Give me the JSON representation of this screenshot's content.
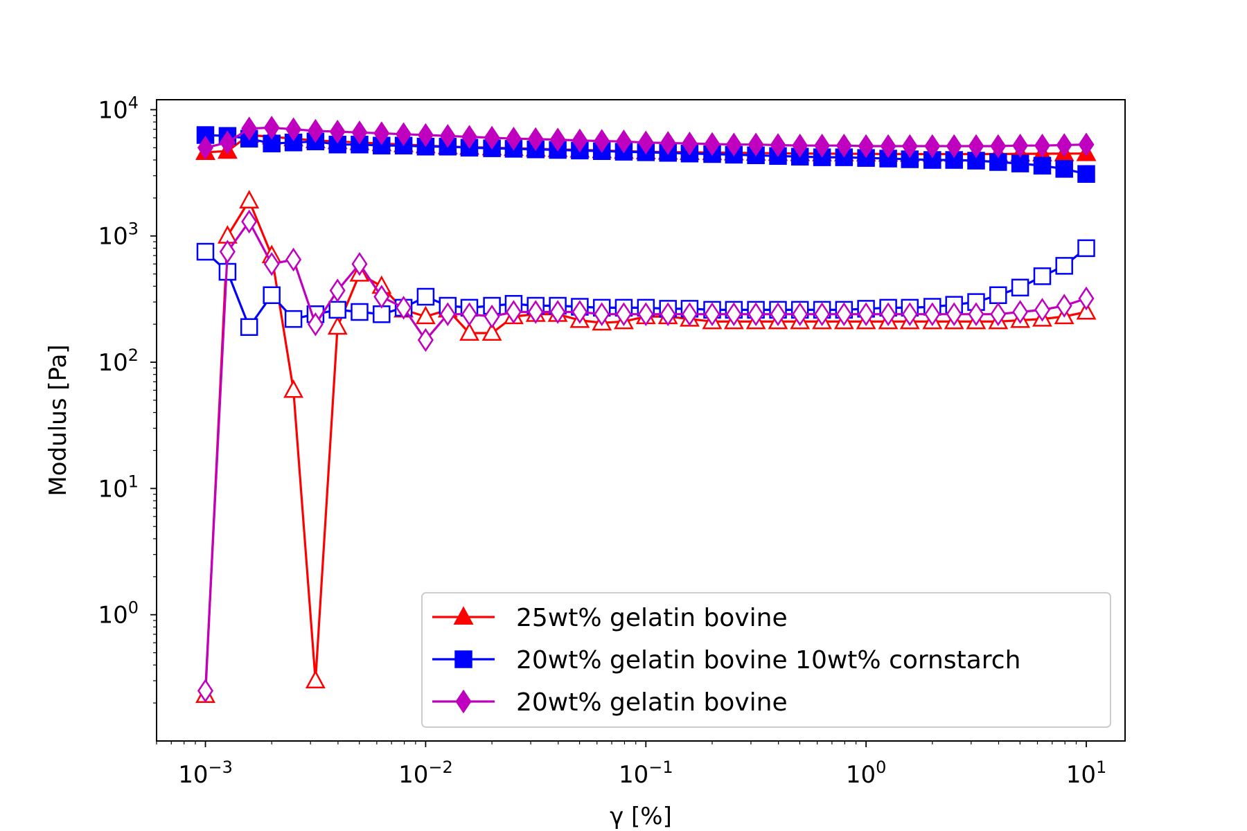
{
  "chart_data": {
    "type": "line",
    "xscale": "log",
    "yscale": "log",
    "xlim": [
      0.0006,
      15
    ],
    "ylim": [
      0.1,
      12000
    ],
    "xlabel": "γ [%]",
    "ylabel": "Modulus [Pa]",
    "grid": false,
    "legend_placement": "lower-right",
    "x_ticks": [
      {
        "value": 0.001,
        "base": "10",
        "exp": "−3"
      },
      {
        "value": 0.01,
        "base": "10",
        "exp": "−2"
      },
      {
        "value": 0.1,
        "base": "10",
        "exp": "−1"
      },
      {
        "value": 1,
        "base": "10",
        "exp": "0"
      },
      {
        "value": 10,
        "base": "10",
        "exp": "1"
      }
    ],
    "y_ticks": [
      {
        "value": 1,
        "base": "10",
        "exp": "0"
      },
      {
        "value": 10,
        "base": "10",
        "exp": "1"
      },
      {
        "value": 100,
        "base": "10",
        "exp": "2"
      },
      {
        "value": 1000,
        "base": "10",
        "exp": "3"
      },
      {
        "value": 10000,
        "base": "10",
        "exp": "4"
      }
    ],
    "x": [
      0.001,
      0.00126,
      0.00158,
      0.002,
      0.00251,
      0.00316,
      0.00398,
      0.00501,
      0.00631,
      0.00794,
      0.01,
      0.0126,
      0.0158,
      0.02,
      0.0251,
      0.0316,
      0.0398,
      0.0501,
      0.0631,
      0.0794,
      0.1,
      0.126,
      0.158,
      0.2,
      0.251,
      0.316,
      0.398,
      0.501,
      0.631,
      0.794,
      1,
      1.26,
      1.58,
      2,
      2.51,
      3.16,
      3.98,
      5.01,
      6.31,
      7.94,
      10
    ],
    "series": [
      {
        "name": "25wt% gelatin bovine",
        "color": "#ff0000",
        "marker": "triangle",
        "storage": [
          4600,
          4700,
          6300,
          6100,
          5900,
          5700,
          5600,
          5500,
          5400,
          5300,
          5200,
          5100,
          5050,
          5000,
          4950,
          4900,
          4850,
          4800,
          4750,
          4700,
          4650,
          4620,
          4600,
          4580,
          4560,
          4540,
          4520,
          4500,
          4490,
          4480,
          4470,
          4460,
          4450,
          4450,
          4450,
          4450,
          4460,
          4470,
          4480,
          4490,
          4500
        ],
        "loss": [
          0.23,
          1000,
          1900,
          700,
          60,
          0.3,
          190,
          500,
          400,
          260,
          230,
          260,
          170,
          170,
          230,
          240,
          240,
          215,
          205,
          210,
          230,
          230,
          220,
          210,
          210,
          210,
          210,
          210,
          210,
          210,
          210,
          210,
          210,
          210,
          210,
          210,
          210,
          215,
          220,
          230,
          250
        ]
      },
      {
        "name": "20wt% gelatin bovine 10wt% cornstarch",
        "color": "#0000ff",
        "marker": "square",
        "storage": [
          6300,
          6200,
          5900,
          5400,
          5500,
          5600,
          5300,
          5300,
          5200,
          5200,
          5100,
          5100,
          5000,
          4950,
          4900,
          4850,
          4800,
          4750,
          4700,
          4650,
          4600,
          4550,
          4500,
          4450,
          4400,
          4350,
          4300,
          4250,
          4200,
          4200,
          4150,
          4100,
          4050,
          4000,
          4000,
          3950,
          3850,
          3750,
          3600,
          3400,
          3100
        ],
        "loss": [
          750,
          520,
          190,
          340,
          220,
          240,
          260,
          250,
          240,
          270,
          330,
          280,
          270,
          280,
          290,
          280,
          280,
          275,
          270,
          270,
          270,
          265,
          265,
          260,
          260,
          260,
          260,
          260,
          260,
          260,
          265,
          270,
          270,
          275,
          285,
          300,
          340,
          390,
          480,
          580,
          800
        ]
      },
      {
        "name": "20wt% gelatin bovine",
        "color": "#bf00bf",
        "marker": "diamond",
        "storage": [
          5000,
          5500,
          7100,
          7200,
          7000,
          6800,
          6700,
          6600,
          6500,
          6400,
          6300,
          6200,
          6100,
          6000,
          5900,
          5850,
          5800,
          5700,
          5650,
          5600,
          5500,
          5450,
          5400,
          5350,
          5300,
          5300,
          5250,
          5200,
          5200,
          5200,
          5150,
          5150,
          5150,
          5150,
          5150,
          5150,
          5150,
          5200,
          5200,
          5250,
          5300
        ],
        "loss": [
          0.25,
          750,
          1300,
          600,
          650,
          200,
          370,
          600,
          330,
          270,
          150,
          240,
          240,
          230,
          250,
          250,
          250,
          250,
          240,
          240,
          240,
          240,
          240,
          240,
          240,
          240,
          240,
          240,
          240,
          240,
          240,
          240,
          240,
          240,
          240,
          240,
          240,
          250,
          260,
          280,
          320
        ]
      }
    ]
  }
}
